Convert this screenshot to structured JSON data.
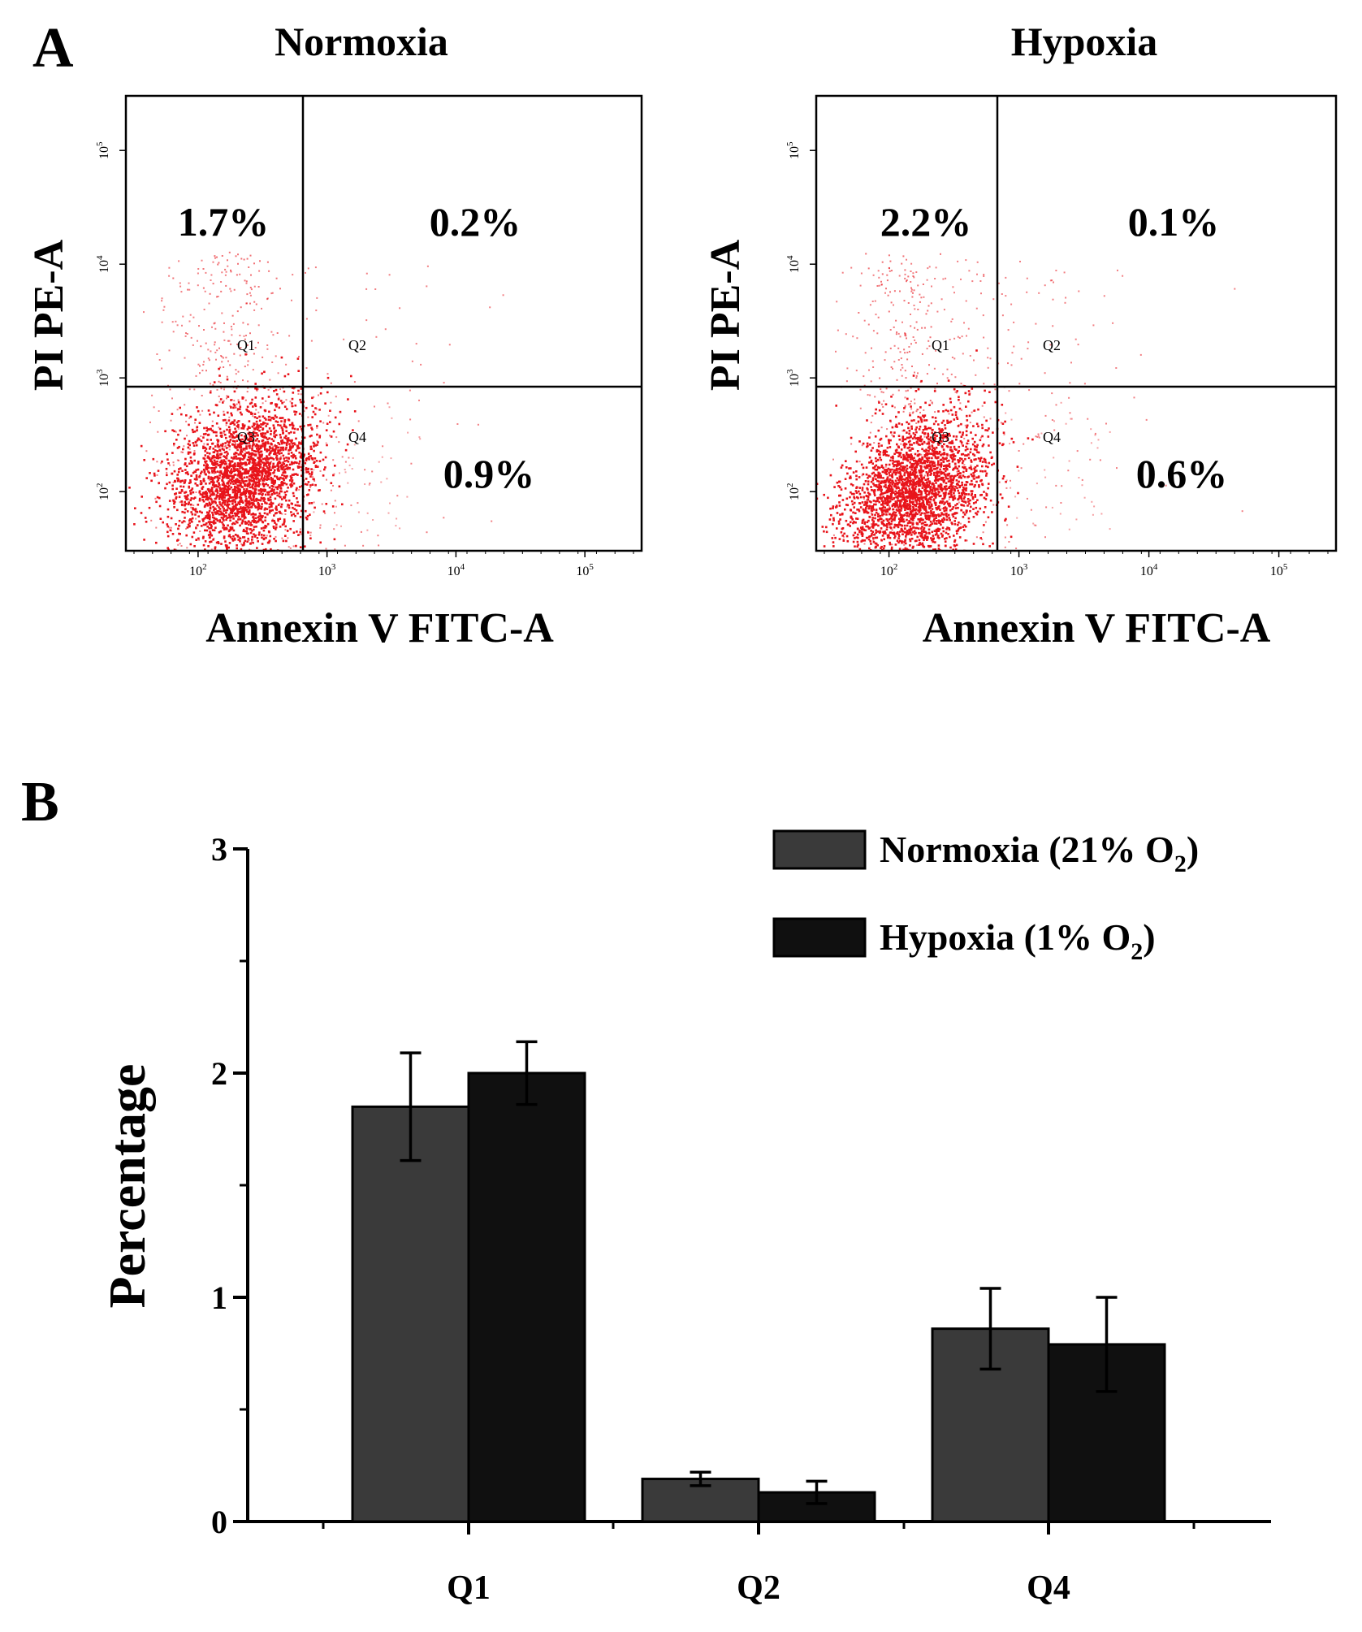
{
  "colors": {
    "normoxia_bar": "#3a3a3a",
    "hypoxia_bar": "#101010",
    "dots": "#e8141b",
    "axis": "#000000",
    "background": "#ffffff"
  },
  "panel_a": {
    "label": "A",
    "x_axis_label": "Annexin V FITC-A",
    "y_axis_label": "PI PE-A",
    "x_ticks": [
      {
        "base": "10",
        "exp": "2"
      },
      {
        "base": "10",
        "exp": "3"
      },
      {
        "base": "10",
        "exp": "4"
      },
      {
        "base": "10",
        "exp": "5"
      }
    ],
    "y_ticks": [
      {
        "base": "10",
        "exp": "2"
      },
      {
        "base": "10",
        "exp": "3"
      },
      {
        "base": "10",
        "exp": "4"
      },
      {
        "base": "10",
        "exp": "5"
      }
    ],
    "quadrant_names": {
      "q1": "Q1",
      "q2": "Q2",
      "q3": "Q3",
      "q4": "Q4"
    },
    "plots": [
      {
        "title": "Normoxia",
        "q1": "1.7%",
        "q2": "0.2%",
        "q4": "0.9%"
      },
      {
        "title": "Hypoxia",
        "q1": "2.2%",
        "q2": "0.1%",
        "q4": "0.6%"
      }
    ]
  },
  "panel_b": {
    "label": "B"
  },
  "chart_data": [
    {
      "type": "scatter",
      "title": "Normoxia",
      "xlabel": "Annexin V FITC-A",
      "ylabel": "PI PE-A",
      "x_scale": "log",
      "y_scale": "log",
      "quadrants": {
        "Q1": 1.7,
        "Q2": 0.2,
        "Q3": null,
        "Q4": 0.9
      }
    },
    {
      "type": "scatter",
      "title": "Hypoxia",
      "xlabel": "Annexin V FITC-A",
      "ylabel": "PI PE-A",
      "x_scale": "log",
      "y_scale": "log",
      "quadrants": {
        "Q1": 2.2,
        "Q2": 0.1,
        "Q3": null,
        "Q4": 0.6
      }
    },
    {
      "type": "bar",
      "categories": [
        "Q1",
        "Q2",
        "Q4"
      ],
      "series": [
        {
          "name": "Normoxia (21% O2)",
          "legend_text": "Normoxia (21% O",
          "legend_sub": "2",
          "legend_tail": ")",
          "values": [
            1.85,
            0.19,
            0.86
          ],
          "errors": [
            0.24,
            0.03,
            0.18
          ]
        },
        {
          "name": "Hypoxia (1% O2)",
          "legend_text": "Hypoxia (1% O",
          "legend_sub": "2",
          "legend_tail": ")",
          "values": [
            2.0,
            0.13,
            0.79
          ],
          "errors": [
            0.14,
            0.05,
            0.21
          ]
        }
      ],
      "xlabel": "",
      "ylabel": "Percentage",
      "ylim": [
        0,
        3
      ],
      "yticks": [
        0,
        1,
        2,
        3
      ],
      "legend": "top-right",
      "grid": false
    }
  ]
}
